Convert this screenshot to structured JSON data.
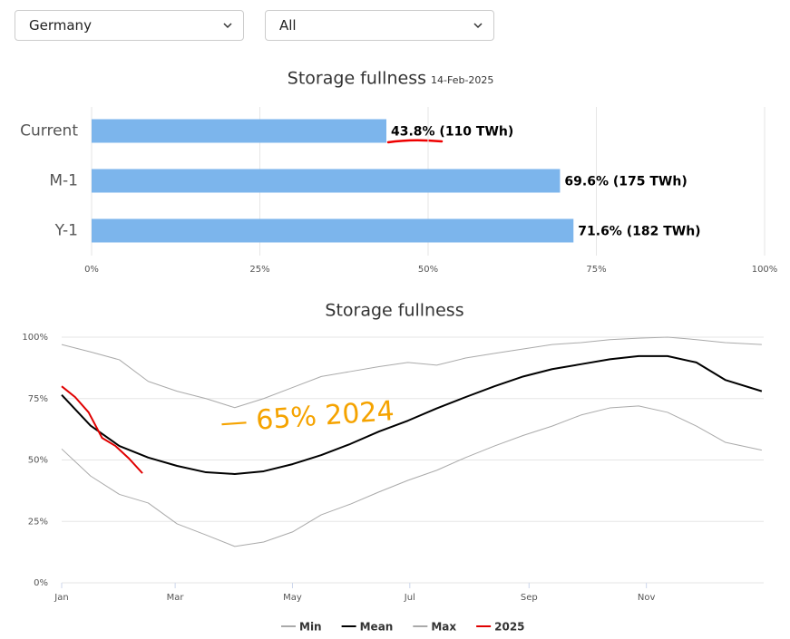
{
  "filters": [
    "Germany",
    "All"
  ],
  "chart_data": [
    {
      "type": "barh",
      "title": "Storage fullness",
      "subtitle": "14-Feb-2025",
      "categories": [
        "Current",
        "M-1",
        "Y-1"
      ],
      "values": [
        43.8,
        69.6,
        71.6
      ],
      "value_labels": [
        "43.8% (110 TWh)",
        "69.6% (175 TWh)",
        "71.6% (182 TWh)"
      ],
      "color": "#7cb5ec",
      "xlim": [
        0,
        100
      ],
      "xticks": [
        {
          "value": 0,
          "label": "0%"
        },
        {
          "value": 25,
          "label": "25%"
        },
        {
          "value": 50,
          "label": "50%"
        },
        {
          "value": 75,
          "label": "75%"
        },
        {
          "value": 100,
          "label": "100%"
        }
      ],
      "grid": true
    },
    {
      "type": "line",
      "title": "Storage fullness",
      "x": [
        0,
        15,
        30,
        45,
        60,
        75,
        90,
        105,
        120,
        135,
        150,
        165,
        180,
        195,
        210,
        225,
        240,
        255,
        270,
        285,
        300,
        315,
        330,
        345,
        364
      ],
      "xlim": [
        0,
        365
      ],
      "xticks": [
        {
          "value": 0,
          "label": "Jan"
        },
        {
          "value": 59,
          "label": "Mar"
        },
        {
          "value": 120,
          "label": "May"
        },
        {
          "value": 181,
          "label": "Jul"
        },
        {
          "value": 243,
          "label": "Sep"
        },
        {
          "value": 304,
          "label": "Nov"
        }
      ],
      "ylim": [
        0,
        100
      ],
      "yticks": [
        {
          "value": 0,
          "label": "0%"
        },
        {
          "value": 25,
          "label": "25%"
        },
        {
          "value": 50,
          "label": "50%"
        },
        {
          "value": 75,
          "label": "75%"
        },
        {
          "value": 100,
          "label": "100%"
        }
      ],
      "grid": true,
      "series": [
        {
          "name": "Min",
          "color": "#aaaaaa",
          "width": 1,
          "values": [
            54.5,
            43.5,
            36,
            32.5,
            24,
            19.5,
            14.8,
            16.6,
            20.7,
            27.7,
            32,
            37,
            41.7,
            45.8,
            51,
            55.7,
            60,
            63.8,
            68.3,
            71.2,
            72,
            69.4,
            63.8,
            57.2,
            54
          ]
        },
        {
          "name": "Mean",
          "color": "#000000",
          "width": 2,
          "values": [
            76.5,
            64,
            55.7,
            51,
            47.6,
            45,
            44.3,
            45.4,
            48.3,
            52,
            56.5,
            61.6,
            66,
            71,
            75.6,
            80,
            84,
            87,
            89,
            91,
            92.3,
            92.3,
            89.7,
            82.6,
            78
          ]
        },
        {
          "name": "Max",
          "color": "#aaaaaa",
          "width": 1,
          "values": [
            97,
            94,
            90.8,
            82,
            78,
            75,
            71.3,
            75,
            79.5,
            84,
            86,
            88,
            89.7,
            88.6,
            91.5,
            93.4,
            95.2,
            97,
            97.8,
            99,
            99.6,
            100,
            99,
            97.8,
            97
          ]
        },
        {
          "name": "2025",
          "color": "#e00000",
          "width": 2,
          "x": [
            0,
            7,
            14,
            21,
            28,
            35,
            42
          ],
          "values": [
            80,
            75.6,
            69.4,
            59,
            55.7,
            50.6,
            44.6
          ]
        }
      ],
      "annotations": [
        "— 65% 2024"
      ]
    }
  ]
}
